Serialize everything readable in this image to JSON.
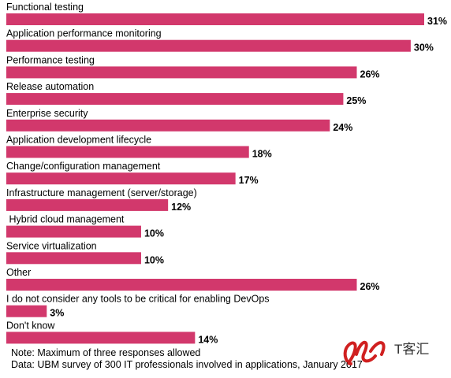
{
  "chart_data": {
    "type": "barh",
    "categories": [
      "Functional testing",
      "Application performance monitoring",
      "Performance testing",
      "Release automation",
      "Enterprise security",
      "Application development lifecycle",
      "Change/configuration management",
      "Infrastructure management (server/storage)",
      " Hybrid cloud management",
      "Service virtualization",
      "Other",
      "I do not consider any tools to be critical for enabling DevOps",
      "Don't know"
    ],
    "values": [
      31,
      30,
      26,
      25,
      24,
      18,
      17,
      12,
      10,
      10,
      26,
      3,
      14
    ],
    "value_labels": [
      "31%",
      "30%",
      "26%",
      "25%",
      "24%",
      "18%",
      "17%",
      "12%",
      "10%",
      "10%",
      "26%",
      "3%",
      "14%"
    ],
    "color": "#d2386c",
    "notes": [
      "Note: Maximum of three responses allowed",
      "Data: UBM survey of 300 IT professionals involved in applications, January 2017"
    ],
    "logo": "T客汇"
  }
}
